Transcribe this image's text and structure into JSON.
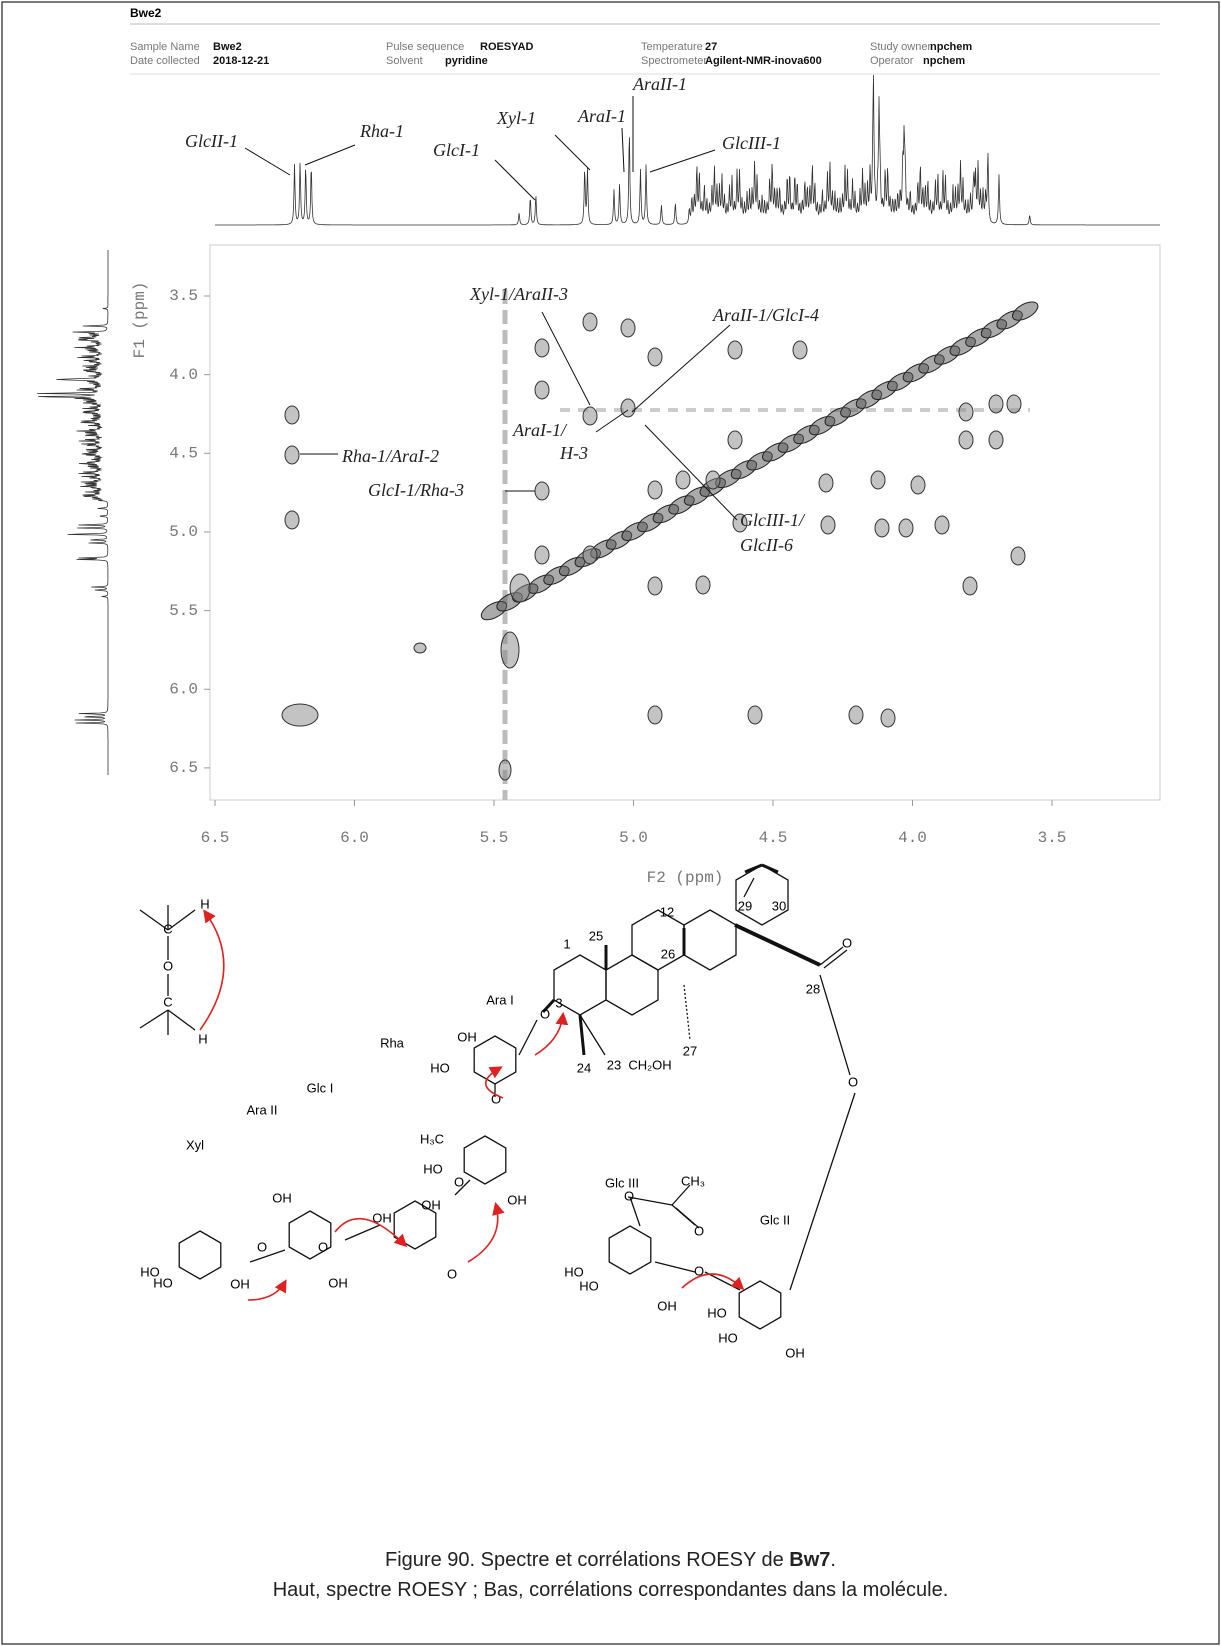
{
  "header": {
    "title": "Bwe2",
    "fields": [
      {
        "label": "Sample Name",
        "value": "Bwe2"
      },
      {
        "label": "Date collected",
        "value": "2018-12-21"
      },
      {
        "label": "Pulse sequence",
        "value": "ROESYAD"
      },
      {
        "label": "Solvent",
        "value": "pyridine"
      },
      {
        "label": "Temperature",
        "value": "27"
      },
      {
        "label": "Spectrometer",
        "value": "Agilent-NMR-inova600"
      },
      {
        "label": "Study owner",
        "value": "npchem"
      },
      {
        "label": "Operator",
        "value": "npchem"
      }
    ]
  },
  "spectrum": {
    "x_axis_label": "F2 (ppm)",
    "y_axis_label": "F1 (ppm)",
    "x_ticks": [
      "6.5",
      "6.0",
      "5.5",
      "5.0",
      "4.5",
      "4.0",
      "3.5"
    ],
    "y_ticks": [
      "3.5",
      "4.0",
      "4.5",
      "5.0",
      "5.5",
      "6.0",
      "6.5"
    ],
    "top_annotations": [
      "GlcII-1",
      "Rha-1",
      "GlcI-1",
      "Xyl-1",
      "AraI-1",
      "AraII-1",
      "GlcIII-1"
    ],
    "annotations": [
      "Xyl-1/AraII-3",
      "AraII-1/GlcI-4",
      "AraI-1/",
      "H-3",
      "Rha-1/AraI-2",
      "GlcI-1/Rha-3",
      "GlcIII-1/",
      "GlcII-6"
    ]
  },
  "scheme": {
    "atoms": [
      "H",
      "C",
      "O",
      "C",
      "H"
    ]
  },
  "molecule": {
    "residues": [
      "Ara I",
      "Rha",
      "Glc I",
      "Ara II",
      "Xyl",
      "Glc III",
      "Glc II"
    ],
    "atoms": [
      "29",
      "30",
      "12",
      "25",
      "26",
      "1",
      "3",
      "27",
      "28",
      "24",
      "23",
      "CH₂OH",
      "O",
      "O",
      "OH",
      "HO",
      "O",
      "O",
      "H₃C",
      "HO",
      "OH",
      "O",
      "OH",
      "O",
      "OH",
      "OH",
      "O",
      "O",
      "OH",
      "HO",
      "HO",
      "OH",
      "CH₃",
      "O",
      "O",
      "HO",
      "HO",
      "OH",
      "O",
      "HO",
      "HO",
      "OH"
    ]
  },
  "caption": {
    "line1": [
      "Figure 90. Spectre et corrélations ROESY de ",
      "Bw7",
      "."
    ],
    "line2": "Haut, spectre ROESY ; Bas, corrélations correspondantes dans la molécule."
  }
}
